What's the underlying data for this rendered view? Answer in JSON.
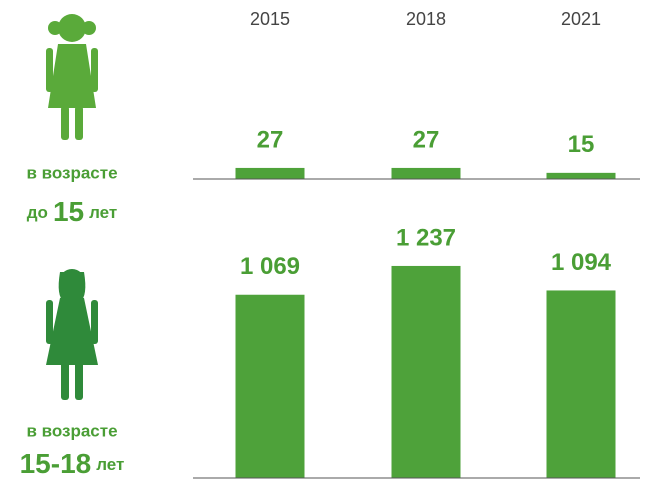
{
  "chart_data": [
    {
      "type": "bar",
      "label": {
        "line1": "в возрасте",
        "pre": "до",
        "num": "15",
        "post": "лет"
      },
      "categories": [
        "2015",
        "2018",
        "2021"
      ],
      "values": [
        27,
        27,
        15
      ],
      "color": "#4ea23a",
      "ylim": [
        0,
        100
      ]
    },
    {
      "type": "bar",
      "label": {
        "line1": "в возрасте",
        "num": "15-18",
        "post": "лет"
      },
      "values": [
        1069,
        1237,
        1094
      ],
      "value_labels": [
        "1 069",
        "1 237",
        "1 094"
      ],
      "color": "#4ea23a",
      "ylim": [
        0,
        1400
      ]
    }
  ]
}
